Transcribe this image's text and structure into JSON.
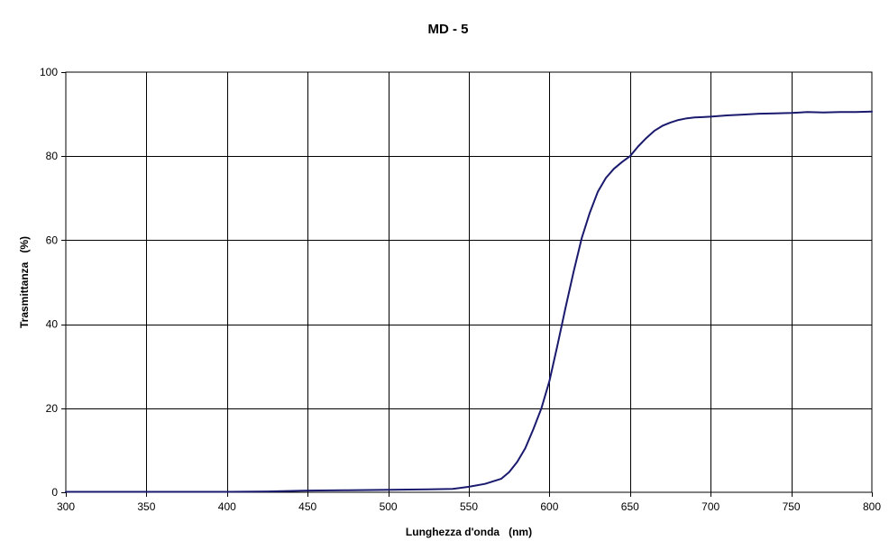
{
  "chart_data": {
    "type": "line",
    "title": "MD - 5",
    "xlabel": "Lunghezza d'onda   (nm)",
    "ylabel": "Trasmittanza   (%)",
    "xlim": [
      300,
      800
    ],
    "ylim": [
      0,
      100
    ],
    "x_ticks": [
      300,
      350,
      400,
      450,
      500,
      550,
      600,
      650,
      700,
      750,
      800
    ],
    "y_ticks": [
      0,
      20,
      40,
      60,
      80,
      100
    ],
    "grid": true,
    "legend": "none",
    "series": [
      {
        "color": "#1a1a6e",
        "x": [
          300,
          350,
          400,
          425,
          450,
          475,
          500,
          525,
          540,
          550,
          560,
          570,
          575,
          580,
          585,
          590,
          595,
          600,
          605,
          610,
          615,
          620,
          625,
          630,
          635,
          640,
          645,
          650,
          655,
          660,
          665,
          670,
          675,
          680,
          685,
          690,
          695,
          700,
          710,
          720,
          730,
          740,
          750,
          760,
          770,
          780,
          790,
          800
        ],
        "y": [
          0.1,
          0.1,
          0.1,
          0.2,
          0.4,
          0.5,
          0.6,
          0.7,
          0.8,
          1.3,
          2.0,
          3.2,
          4.8,
          7.2,
          10.5,
          15.0,
          20.0,
          26.5,
          35.0,
          44.0,
          52.5,
          60.5,
          66.5,
          71.5,
          74.8,
          77.0,
          78.6,
          80.0,
          82.3,
          84.3,
          86.0,
          87.2,
          88.0,
          88.6,
          89.0,
          89.2,
          89.3,
          89.4,
          89.7,
          89.9,
          90.1,
          90.2,
          90.3,
          90.5,
          90.4,
          90.5,
          90.5,
          90.6
        ]
      }
    ]
  }
}
